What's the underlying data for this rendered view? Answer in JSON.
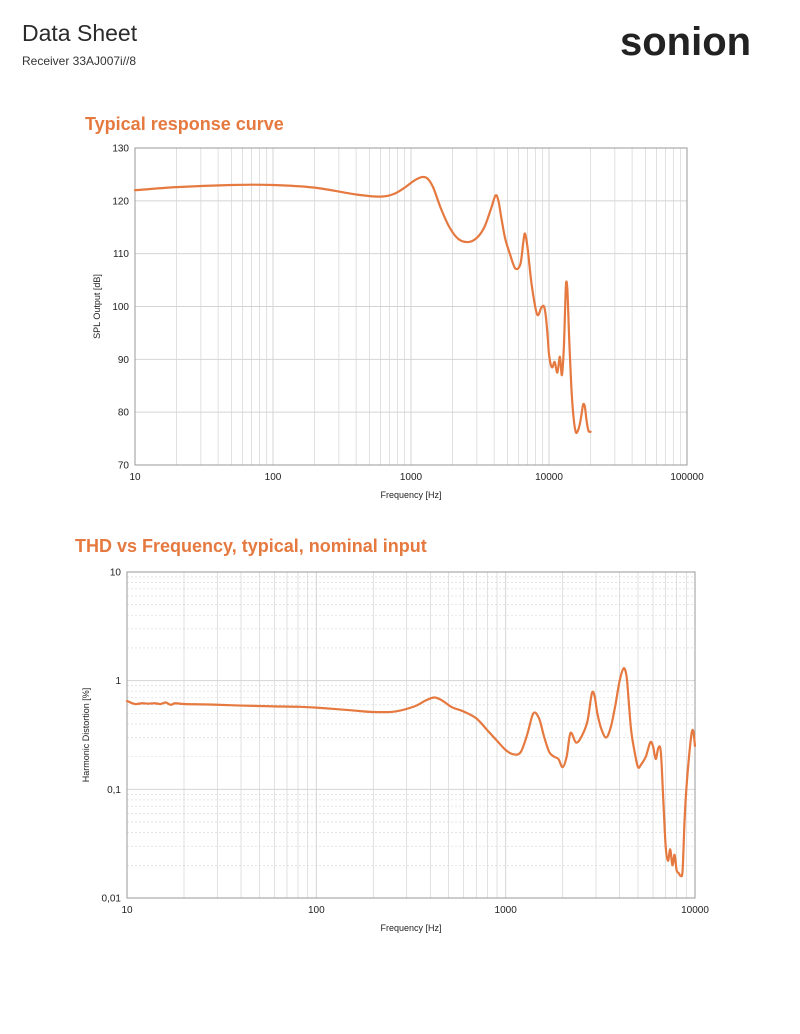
{
  "header": {
    "title": "Data Sheet",
    "subtitle": "Receiver 33AJ007i//8",
    "logo_text": "sonion",
    "logo_color": "#1f1f1f",
    "logo_accent": "#e5793f"
  },
  "colors": {
    "curve": "#e5793f",
    "grid": "#d4d4d4",
    "axis": "#9a9a9a"
  },
  "chart_data": [
    {
      "type": "line",
      "title": "Typical response curve",
      "xlabel": "Frequency [Hz]",
      "ylabel": "SPL Output [dB]",
      "xscale": "log",
      "xlim": [
        10,
        100000
      ],
      "ylim": [
        70,
        130
      ],
      "xticks": [
        10,
        100,
        1000,
        10000,
        100000
      ],
      "xtick_labels": [
        "10",
        "100",
        "1000",
        "10000",
        "100000"
      ],
      "yticks": [
        70,
        80,
        90,
        100,
        110,
        120,
        130
      ],
      "ytick_labels": [
        "70",
        "80",
        "90",
        "100",
        "110",
        "120",
        "130"
      ],
      "grid": true,
      "series": [
        {
          "x": [
            10,
            20,
            50,
            100,
            200,
            400,
            600,
            750,
            900,
            1050,
            1200,
            1320,
            1450,
            1650,
            1900,
            2200,
            2600,
            3000,
            3400,
            3800,
            4100,
            4300,
            4500,
            4800,
            5200,
            5700,
            6200,
            6500,
            6700,
            7000,
            7500,
            8200,
            8800,
            9200,
            9500,
            9800,
            10000,
            10300,
            10600,
            11000,
            11500,
            12000,
            12400,
            12800,
            13100,
            13300,
            13600,
            14000,
            14500,
            15000,
            15600,
            16200,
            16800,
            17300,
            17700,
            18200,
            18700,
            19300,
            20000
          ],
          "y": [
            122,
            122.6,
            123,
            123,
            122.5,
            121.2,
            120.8,
            121.3,
            122.5,
            123.8,
            124.5,
            124.2,
            122.5,
            118.5,
            115,
            112.8,
            112.2,
            113,
            115,
            118.5,
            121,
            120,
            117,
            113,
            110,
            107.2,
            108,
            112,
            113.8,
            111,
            104,
            98.5,
            99.8,
            100,
            98,
            94,
            91,
            89,
            88.5,
            89.5,
            87.5,
            90.5,
            87,
            92,
            100,
            104.5,
            103,
            94,
            85,
            79.5,
            76.3,
            76.5,
            78,
            80,
            81.5,
            81,
            78.5,
            76.5,
            76.3
          ]
        }
      ]
    },
    {
      "type": "line",
      "title": "THD vs Frequency, typical, nominal input",
      "xlabel": "Frequency [Hz]",
      "ylabel": "Harmonic Distortion [%]",
      "xscale": "log",
      "yscale": "log",
      "xlim": [
        10,
        10000
      ],
      "ylim": [
        0.01,
        10
      ],
      "xticks": [
        10,
        100,
        1000,
        10000
      ],
      "xtick_labels": [
        "10",
        "100",
        "1000",
        "10000"
      ],
      "yticks": [
        0.01,
        0.1,
        1,
        10
      ],
      "ytick_labels": [
        "0,01",
        "0,1",
        "1",
        "10"
      ],
      "grid": true,
      "series": [
        {
          "x": [
            10,
            11,
            12,
            13,
            14,
            15,
            16,
            17,
            18,
            20,
            25,
            30,
            40,
            50,
            60,
            80,
            100,
            150,
            200,
            260,
            330,
            380,
            420,
            460,
            520,
            600,
            700,
            800,
            900,
            1000,
            1100,
            1200,
            1300,
            1400,
            1500,
            1600,
            1700,
            1800,
            1900,
            2000,
            2100,
            2200,
            2350,
            2500,
            2700,
            2850,
            2950,
            3050,
            3200,
            3400,
            3600,
            3800,
            4000,
            4200,
            4350,
            4450,
            4600,
            4800,
            5000,
            5200,
            5500,
            5800,
            6000,
            6200,
            6400,
            6600,
            6800,
            7000,
            7200,
            7400,
            7600,
            7800,
            8000,
            8200,
            8400,
            8600,
            8800,
            9000,
            9300,
            9600,
            9800,
            10000
          ],
          "y": [
            0.65,
            0.61,
            0.62,
            0.615,
            0.62,
            0.61,
            0.63,
            0.6,
            0.62,
            0.61,
            0.605,
            0.6,
            0.59,
            0.585,
            0.58,
            0.575,
            0.565,
            0.535,
            0.515,
            0.52,
            0.58,
            0.66,
            0.7,
            0.66,
            0.57,
            0.52,
            0.45,
            0.35,
            0.28,
            0.23,
            0.21,
            0.22,
            0.32,
            0.5,
            0.45,
            0.3,
            0.22,
            0.2,
            0.19,
            0.16,
            0.2,
            0.33,
            0.27,
            0.3,
            0.42,
            0.76,
            0.72,
            0.5,
            0.36,
            0.3,
            0.38,
            0.6,
            1.0,
            1.3,
            1.1,
            0.7,
            0.35,
            0.22,
            0.16,
            0.17,
            0.2,
            0.27,
            0.25,
            0.19,
            0.24,
            0.22,
            0.08,
            0.03,
            0.022,
            0.028,
            0.02,
            0.025,
            0.018,
            0.017,
            0.016,
            0.018,
            0.05,
            0.1,
            0.2,
            0.33,
            0.34,
            0.25
          ]
        }
      ]
    }
  ]
}
